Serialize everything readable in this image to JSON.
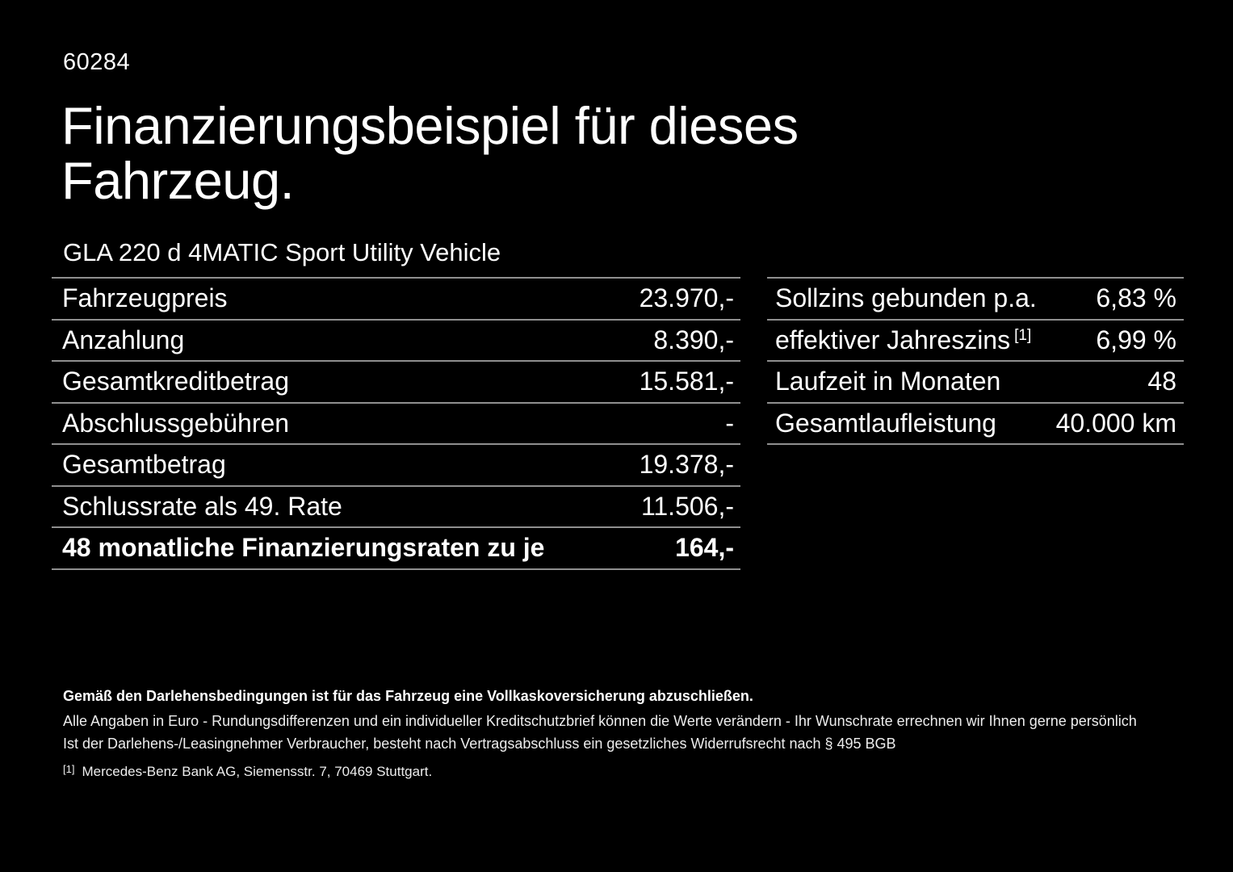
{
  "page": {
    "background_color": "#000000",
    "text_color": "#ffffff",
    "divider_color": "#8f8f8f"
  },
  "document_id": "60284",
  "title": "Finanzierungsbeispiel für dieses Fahrzeug.",
  "vehicle_model": "GLA 220 d 4MATIC Sport Utility Vehicle",
  "finance_table": {
    "rows": [
      {
        "label": "Fahrzeugpreis",
        "value": "23.970,-"
      },
      {
        "label": "Anzahlung",
        "value": "8.390,-"
      },
      {
        "label": "Gesamtkreditbetrag",
        "value": "15.581,-"
      },
      {
        "label": "Abschlussgebühren",
        "value": "-"
      },
      {
        "label": "Gesamtbetrag",
        "value": "19.378,-"
      },
      {
        "label": "Schlussrate als 49. Rate",
        "value": "11.506,-"
      },
      {
        "label": "48 monatliche Finanzierungsraten zu je",
        "value": "164,-"
      }
    ]
  },
  "conditions_table": {
    "rows": [
      {
        "label": "Sollzins gebunden p.a.",
        "sup": "",
        "value": "6,83 %"
      },
      {
        "label": "effektiver Jahreszins",
        "sup": "[1]",
        "value": "6,99 %"
      },
      {
        "label": "Laufzeit in Monaten",
        "sup": "",
        "value": "48"
      },
      {
        "label": "Gesamtlaufleistung",
        "sup": "",
        "value": "40.000 km"
      }
    ]
  },
  "footer": {
    "insurance_note": "Gemäß den Darlehensbedingungen ist für das Fahrzeug eine Vollkaskoversicherung abzuschließen.",
    "disclaimer_line1": "Alle Angaben in Euro - Rundungsdifferenzen und ein individueller Kreditschutzbrief können die Werte verändern - Ihr Wunschrate errechnen wir Ihnen gerne persönlich",
    "disclaimer_line2": "Ist der Darlehens-/Leasingnehmer Verbraucher, besteht nach Vertragsabschluss ein gesetzliches Widerrufsrecht nach § 495 BGB",
    "footnote_marker": "[1]",
    "footnote_text": "Mercedes-Benz Bank AG, Siemensstr. 7, 70469 Stuttgart."
  }
}
